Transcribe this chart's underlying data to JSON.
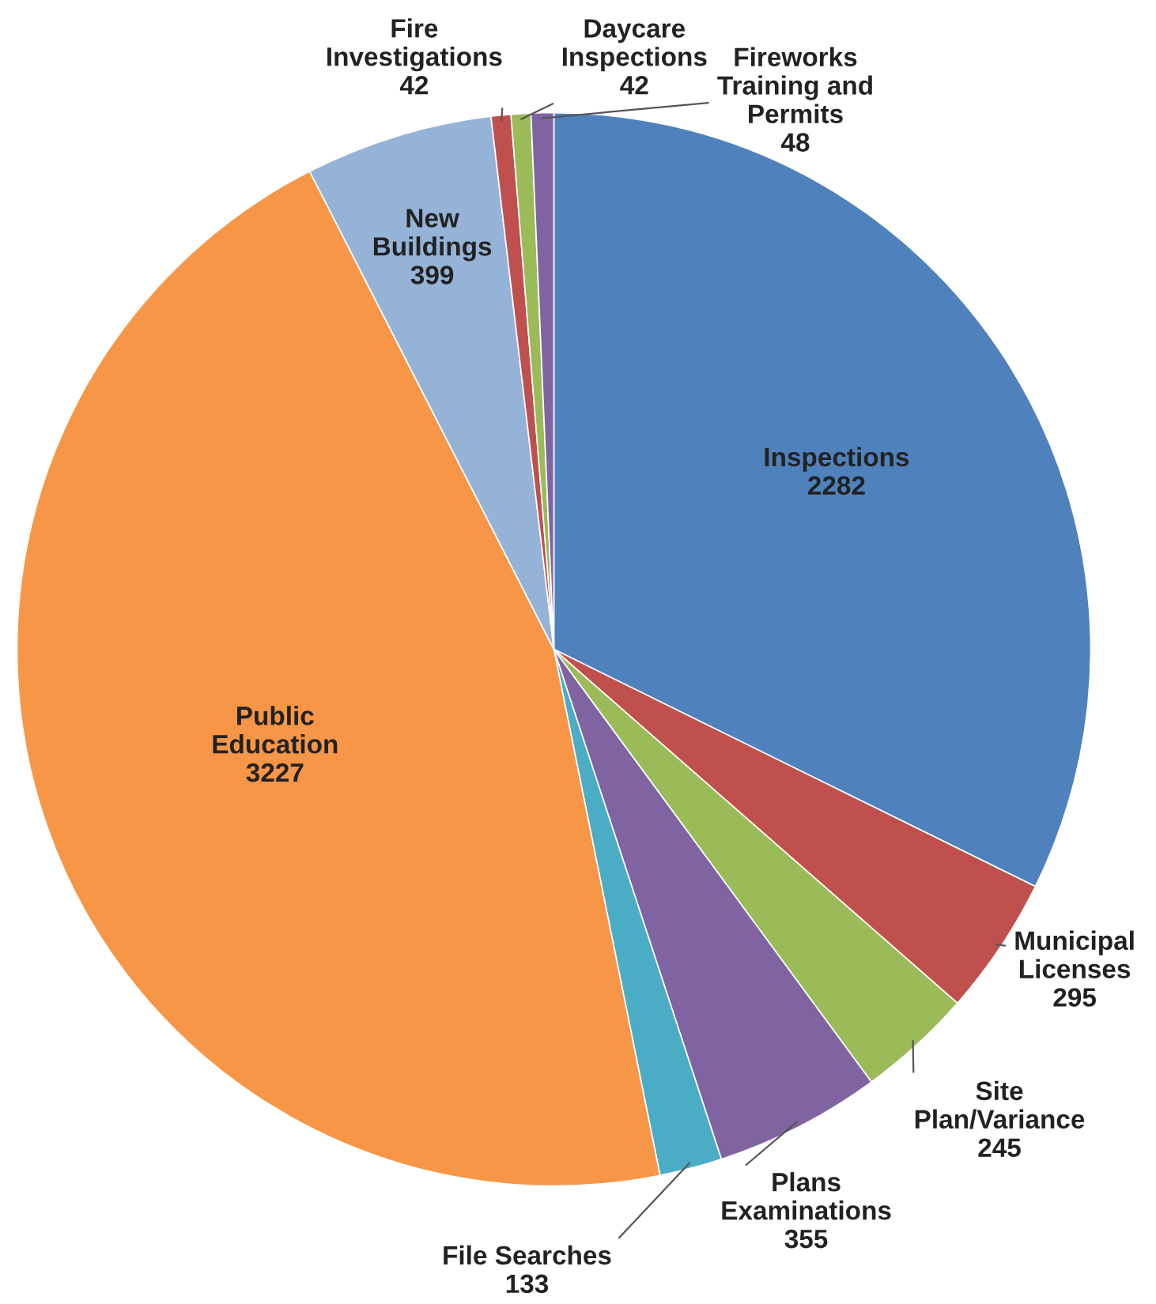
{
  "chart_data": {
    "type": "pie",
    "categories": [
      "Inspections",
      "Municipal Licenses",
      "Site Plan/Variance",
      "Plans Examinations",
      "File Searches",
      "Public Education",
      "New Buildings",
      "Fire Investigations",
      "Daycare Inspections",
      "Fireworks Training and Permits"
    ],
    "values": [
      2282,
      295,
      245,
      355,
      133,
      3227,
      399,
      42,
      42,
      48
    ],
    "colors": [
      "#4f81bd",
      "#c0504d",
      "#9bbb59",
      "#8064a2",
      "#4bacc6",
      "#f79646",
      "#95b3d7",
      "#c0504d",
      "#9bbb59",
      "#8064a2"
    ],
    "data_labels": true
  }
}
